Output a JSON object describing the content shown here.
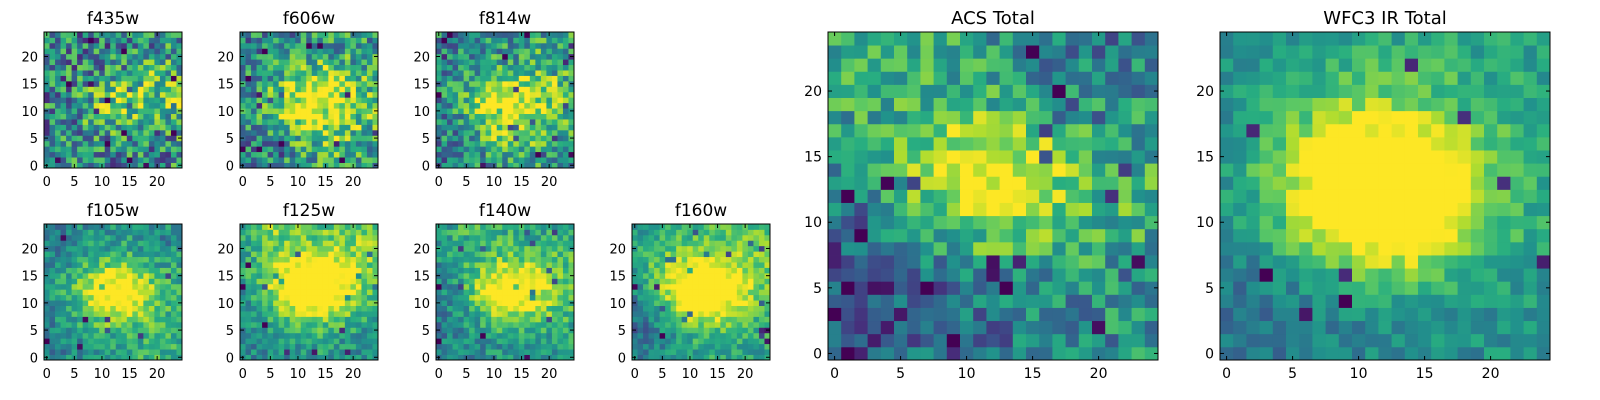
{
  "chart_data": [
    {
      "type": "heatmap",
      "title": "f435w",
      "xticks": [
        0,
        5,
        10,
        15,
        20
      ],
      "yticks": [
        0,
        5,
        10,
        15,
        20
      ],
      "xlim": [
        -0.5,
        24.5
      ],
      "ylim": [
        -0.5,
        24.5
      ],
      "grid_size": 25,
      "colormap": "viridis",
      "noise": 0.7,
      "blob_center": [
        13,
        12
      ],
      "blob_strength": 0.35
    },
    {
      "type": "heatmap",
      "title": "f606w",
      "xticks": [
        0,
        5,
        10,
        15,
        20
      ],
      "yticks": [
        0,
        5,
        10,
        15,
        20
      ],
      "xlim": [
        -0.5,
        24.5
      ],
      "ylim": [
        -0.5,
        24.5
      ],
      "grid_size": 25,
      "colormap": "viridis",
      "noise": 0.6,
      "blob_center": [
        13,
        12
      ],
      "blob_strength": 0.5
    },
    {
      "type": "heatmap",
      "title": "f814w",
      "xticks": [
        0,
        5,
        10,
        15,
        20
      ],
      "yticks": [
        0,
        5,
        10,
        15,
        20
      ],
      "xlim": [
        -0.5,
        24.5
      ],
      "ylim": [
        -0.5,
        24.5
      ],
      "grid_size": 25,
      "colormap": "viridis",
      "noise": 0.55,
      "blob_center": [
        11,
        12
      ],
      "blob_strength": 0.55
    },
    {
      "type": "heatmap",
      "title": "f105w",
      "xticks": [
        0,
        5,
        10,
        15,
        20
      ],
      "yticks": [
        0,
        5,
        10,
        15,
        20
      ],
      "xlim": [
        -0.5,
        24.5
      ],
      "ylim": [
        -0.5,
        24.5
      ],
      "grid_size": 25,
      "colormap": "viridis",
      "noise": 0.35,
      "blob_center": [
        12,
        12
      ],
      "blob_strength": 0.7
    },
    {
      "type": "heatmap",
      "title": "f125w",
      "xticks": [
        0,
        5,
        10,
        15,
        20
      ],
      "yticks": [
        0,
        5,
        10,
        15,
        20
      ],
      "xlim": [
        -0.5,
        24.5
      ],
      "ylim": [
        -0.5,
        24.5
      ],
      "grid_size": 25,
      "colormap": "viridis",
      "noise": 0.35,
      "blob_center": [
        12,
        13
      ],
      "blob_strength": 0.65
    },
    {
      "type": "heatmap",
      "title": "f140w",
      "xticks": [
        0,
        5,
        10,
        15,
        20
      ],
      "yticks": [
        0,
        5,
        10,
        15,
        20
      ],
      "xlim": [
        -0.5,
        24.5
      ],
      "ylim": [
        -0.5,
        24.5
      ],
      "grid_size": 25,
      "colormap": "viridis",
      "noise": 0.35,
      "blob_center": [
        13,
        12
      ],
      "blob_strength": 0.65
    },
    {
      "type": "heatmap",
      "title": "f160w",
      "xticks": [
        0,
        5,
        10,
        15,
        20
      ],
      "yticks": [
        0,
        5,
        10,
        15,
        20
      ],
      "xlim": [
        -0.5,
        24.5
      ],
      "ylim": [
        -0.5,
        24.5
      ],
      "grid_size": 25,
      "colormap": "viridis",
      "noise": 0.3,
      "blob_center": [
        12,
        12
      ],
      "blob_strength": 0.7
    },
    {
      "type": "heatmap",
      "title": "ACS Total",
      "xticks": [
        0,
        5,
        10,
        15,
        20
      ],
      "yticks": [
        0,
        5,
        10,
        15,
        20
      ],
      "xlim": [
        -0.5,
        24.5
      ],
      "ylim": [
        -0.5,
        24.5
      ],
      "grid_size": 25,
      "colormap": "viridis",
      "noise": 0.45,
      "blob_center": [
        11,
        13
      ],
      "blob_strength": 0.6
    },
    {
      "type": "heatmap",
      "title": "WFC3 IR Total",
      "xticks": [
        0,
        5,
        10,
        15,
        20
      ],
      "yticks": [
        0,
        5,
        10,
        15,
        20
      ],
      "xlim": [
        -0.5,
        24.5
      ],
      "ylim": [
        -0.5,
        24.5
      ],
      "grid_size": 25,
      "colormap": "viridis",
      "noise": 0.25,
      "blob_center": [
        12,
        12
      ],
      "blob_strength": 0.75
    }
  ],
  "colors": {
    "colormap_dark": "#440154",
    "colormap_mid": "#21918c",
    "colormap_bright": "#fde725",
    "axes": "#000000",
    "background": "#ffffff"
  }
}
